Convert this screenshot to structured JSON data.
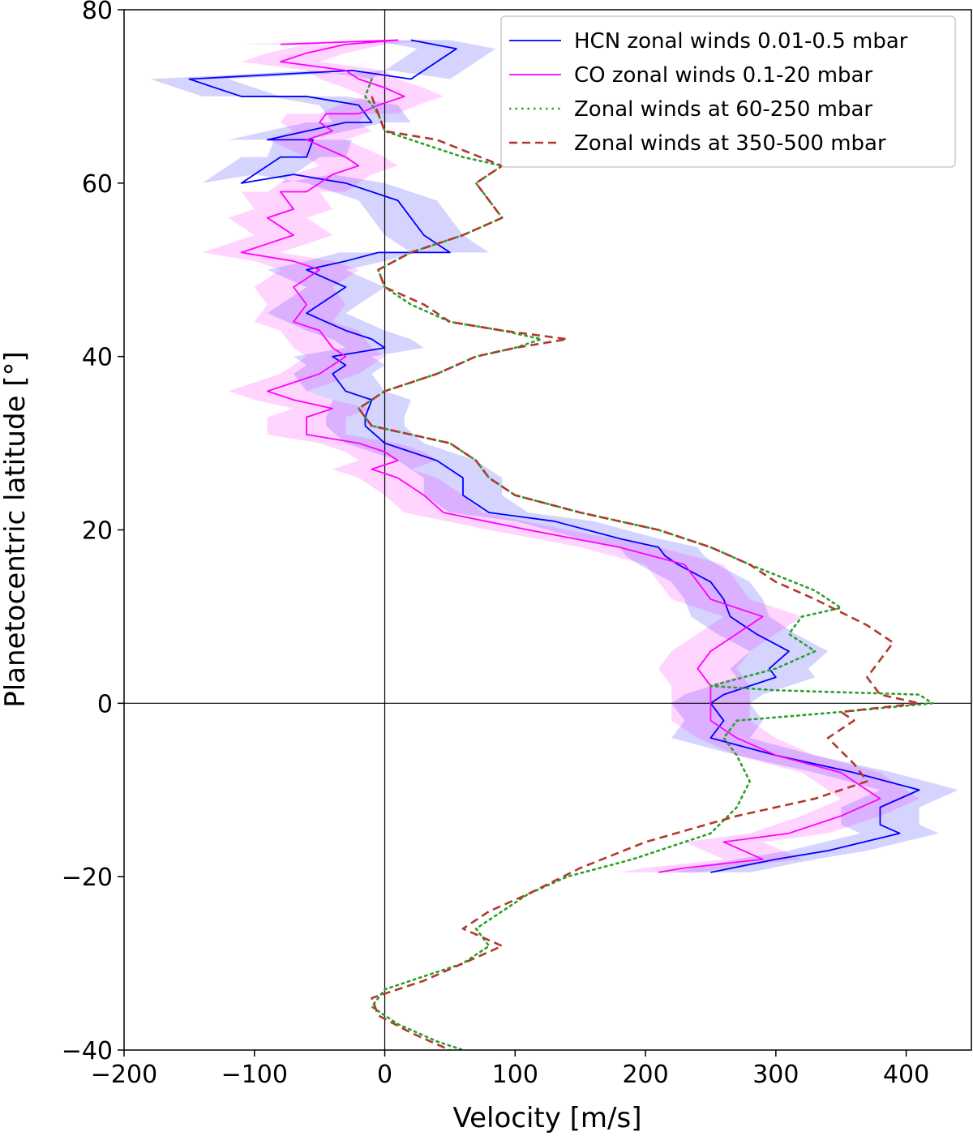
{
  "chart_data": {
    "type": "line",
    "title": "",
    "xlabel": "Velocity [m/s]",
    "ylabel": "Planetocentric latitude [°]",
    "xlim": [
      -200,
      450
    ],
    "ylim": [
      -40,
      80
    ],
    "xticks": [
      -200,
      -100,
      0,
      100,
      200,
      300,
      400
    ],
    "yticks": [
      -40,
      -20,
      0,
      20,
      40,
      60,
      80
    ],
    "xtick_labels": [
      "−200",
      "−100",
      "0",
      "100",
      "200",
      "300",
      "400"
    ],
    "ytick_labels": [
      "−40",
      "−20",
      "0",
      "20",
      "40",
      "60",
      "80"
    ],
    "grid": false,
    "reference_lines": {
      "x": 0,
      "y": 0
    },
    "legend_position": "top-right",
    "series": [
      {
        "name": "HCN zonal winds 0.01-0.5 mbar",
        "color": "#0000ff",
        "band_color": "#0000ff",
        "style": "solid",
        "uncertainty": 30,
        "points": [
          [
            20,
            76.5
          ],
          [
            55,
            75.5
          ],
          [
            30,
            73
          ],
          [
            20,
            72
          ],
          [
            -25,
            73
          ],
          [
            -150,
            72
          ],
          [
            -110,
            70
          ],
          [
            -60,
            70
          ],
          [
            -20,
            69
          ],
          [
            -10,
            67
          ],
          [
            -30,
            67
          ],
          [
            -90,
            65
          ],
          [
            -55,
            65
          ],
          [
            -60,
            63
          ],
          [
            -80,
            63
          ],
          [
            -110,
            60
          ],
          [
            -70,
            61
          ],
          [
            -30,
            60
          ],
          [
            -10,
            59
          ],
          [
            10,
            58
          ],
          [
            20,
            56
          ],
          [
            30,
            54
          ],
          [
            50,
            52
          ],
          [
            -5,
            52
          ],
          [
            -30,
            51
          ],
          [
            -60,
            50
          ],
          [
            -45,
            49
          ],
          [
            -30,
            48
          ],
          [
            -50,
            46
          ],
          [
            -60,
            45
          ],
          [
            -45,
            44
          ],
          [
            -30,
            43
          ],
          [
            -10,
            42
          ],
          [
            0,
            41
          ],
          [
            -40,
            40
          ],
          [
            -30,
            39
          ],
          [
            -40,
            38
          ],
          [
            -30,
            36
          ],
          [
            -10,
            35
          ],
          [
            -15,
            33
          ],
          [
            -15,
            32
          ],
          [
            0,
            30
          ],
          [
            20,
            29
          ],
          [
            40,
            28
          ],
          [
            60,
            26
          ],
          [
            60,
            24
          ],
          [
            80,
            22
          ],
          [
            130,
            21
          ],
          [
            180,
            19
          ],
          [
            210,
            18
          ],
          [
            215,
            17
          ],
          [
            225,
            16
          ],
          [
            250,
            14
          ],
          [
            260,
            12
          ],
          [
            265,
            10
          ],
          [
            285,
            8
          ],
          [
            310,
            6
          ],
          [
            295,
            4
          ],
          [
            300,
            3
          ],
          [
            260,
            1
          ],
          [
            250,
            0
          ],
          [
            260,
            -2
          ],
          [
            250,
            -4
          ],
          [
            300,
            -6
          ],
          [
            360,
            -8
          ],
          [
            410,
            -10
          ],
          [
            380,
            -12
          ],
          [
            380,
            -14
          ],
          [
            395,
            -15
          ],
          [
            340,
            -17
          ],
          [
            300,
            -18
          ],
          [
            250,
            -19.5
          ]
        ]
      },
      {
        "name": "CO zonal winds 0.1-20 mbar",
        "color": "#ff00ff",
        "band_color": "#ff00ff",
        "style": "solid",
        "uncertainty": 30,
        "points": [
          [
            -80,
            76
          ],
          [
            10,
            76.5
          ],
          [
            -30,
            76
          ],
          [
            -60,
            75
          ],
          [
            -80,
            74
          ],
          [
            -30,
            73
          ],
          [
            -20,
            72
          ],
          [
            0,
            71
          ],
          [
            15,
            70
          ],
          [
            -5,
            69
          ],
          [
            -20,
            68
          ],
          [
            -45,
            68
          ],
          [
            -50,
            67
          ],
          [
            -40,
            66
          ],
          [
            -60,
            65
          ],
          [
            -30,
            63
          ],
          [
            -20,
            62
          ],
          [
            -40,
            61
          ],
          [
            -60,
            59
          ],
          [
            -80,
            59
          ],
          [
            -70,
            57
          ],
          [
            -90,
            56
          ],
          [
            -70,
            54
          ],
          [
            -90,
            53
          ],
          [
            -110,
            52
          ],
          [
            -70,
            51
          ],
          [
            -50,
            50
          ],
          [
            -60,
            49
          ],
          [
            -70,
            48
          ],
          [
            -60,
            46
          ],
          [
            -70,
            44
          ],
          [
            -50,
            43
          ],
          [
            -40,
            41
          ],
          [
            -30,
            40
          ],
          [
            -50,
            38
          ],
          [
            -70,
            37
          ],
          [
            -90,
            36
          ],
          [
            -70,
            35
          ],
          [
            -40,
            34
          ],
          [
            -60,
            33
          ],
          [
            -60,
            31
          ],
          [
            -20,
            30
          ],
          [
            0,
            29
          ],
          [
            10,
            28
          ],
          [
            -10,
            27
          ],
          [
            10,
            26
          ],
          [
            30,
            24
          ],
          [
            45,
            22
          ],
          [
            110,
            20
          ],
          [
            180,
            18
          ],
          [
            230,
            16
          ],
          [
            240,
            14
          ],
          [
            250,
            12
          ],
          [
            290,
            10
          ],
          [
            270,
            8
          ],
          [
            250,
            6
          ],
          [
            240,
            4
          ],
          [
            250,
            2
          ],
          [
            250,
            0
          ],
          [
            250,
            -2
          ],
          [
            270,
            -4
          ],
          [
            300,
            -6
          ],
          [
            350,
            -8
          ],
          [
            380,
            -11
          ],
          [
            350,
            -13
          ],
          [
            310,
            -15
          ],
          [
            260,
            -16
          ],
          [
            290,
            -18
          ],
          [
            230,
            -19
          ],
          [
            210,
            -19.5
          ]
        ]
      },
      {
        "name": "Zonal winds at 60-250 mbar",
        "color": "#2ca02c",
        "style": "dotted",
        "points": [
          [
            -10,
            72
          ],
          [
            -15,
            70
          ],
          [
            -5,
            68
          ],
          [
            0,
            66
          ],
          [
            20,
            65
          ],
          [
            60,
            63
          ],
          [
            90,
            62
          ],
          [
            70,
            60
          ],
          [
            80,
            58
          ],
          [
            90,
            56
          ],
          [
            60,
            54
          ],
          [
            20,
            52
          ],
          [
            -5,
            50
          ],
          [
            0,
            48
          ],
          [
            20,
            46
          ],
          [
            50,
            44
          ],
          [
            90,
            43
          ],
          [
            120,
            42
          ],
          [
            100,
            41
          ],
          [
            70,
            40
          ],
          [
            40,
            38
          ],
          [
            0,
            36
          ],
          [
            -20,
            34
          ],
          [
            -10,
            32
          ],
          [
            20,
            31
          ],
          [
            50,
            30
          ],
          [
            70,
            28
          ],
          [
            80,
            26
          ],
          [
            100,
            24
          ],
          [
            150,
            22
          ],
          [
            210,
            20
          ],
          [
            250,
            18
          ],
          [
            280,
            16
          ],
          [
            330,
            13
          ],
          [
            350,
            11
          ],
          [
            320,
            10
          ],
          [
            310,
            8
          ],
          [
            330,
            6
          ],
          [
            300,
            4
          ],
          [
            250,
            2
          ],
          [
            300,
            1.5
          ],
          [
            410,
            1
          ],
          [
            420,
            0
          ],
          [
            350,
            -1
          ],
          [
            270,
            -2
          ],
          [
            260,
            -4
          ],
          [
            270,
            -6
          ],
          [
            280,
            -9
          ],
          [
            270,
            -12
          ],
          [
            250,
            -15
          ],
          [
            190,
            -18
          ],
          [
            140,
            -20
          ],
          [
            110,
            -22
          ],
          [
            90,
            -24
          ],
          [
            70,
            -26
          ],
          [
            80,
            -28
          ],
          [
            60,
            -30
          ],
          [
            40,
            -31
          ],
          [
            0,
            -33
          ],
          [
            -10,
            -35
          ],
          [
            10,
            -37
          ],
          [
            40,
            -39
          ],
          [
            60,
            -40
          ]
        ]
      },
      {
        "name": "Zonal winds at 350-500 mbar",
        "color": "#b03a2e",
        "style": "dashed",
        "points": [
          [
            -10,
            70
          ],
          [
            0,
            66
          ],
          [
            40,
            65
          ],
          [
            90,
            62
          ],
          [
            70,
            60
          ],
          [
            80,
            58
          ],
          [
            90,
            56
          ],
          [
            60,
            54
          ],
          [
            20,
            52
          ],
          [
            -5,
            50
          ],
          [
            0,
            48
          ],
          [
            30,
            46
          ],
          [
            50,
            44
          ],
          [
            90,
            43
          ],
          [
            140,
            42
          ],
          [
            100,
            41
          ],
          [
            70,
            40
          ],
          [
            40,
            38
          ],
          [
            0,
            36
          ],
          [
            -20,
            34
          ],
          [
            -10,
            32
          ],
          [
            20,
            31
          ],
          [
            50,
            30
          ],
          [
            70,
            28
          ],
          [
            80,
            26
          ],
          [
            100,
            24
          ],
          [
            150,
            22
          ],
          [
            210,
            20
          ],
          [
            250,
            18
          ],
          [
            280,
            16
          ],
          [
            300,
            14
          ],
          [
            330,
            12
          ],
          [
            370,
            9
          ],
          [
            390,
            7
          ],
          [
            380,
            5
          ],
          [
            370,
            3
          ],
          [
            380,
            1
          ],
          [
            410,
            0
          ],
          [
            350,
            -1
          ],
          [
            360,
            -2
          ],
          [
            340,
            -4
          ],
          [
            360,
            -7
          ],
          [
            370,
            -9
          ],
          [
            330,
            -11
          ],
          [
            270,
            -13
          ],
          [
            200,
            -16
          ],
          [
            150,
            -19
          ],
          [
            110,
            -22
          ],
          [
            80,
            -24
          ],
          [
            60,
            -26
          ],
          [
            90,
            -28
          ],
          [
            60,
            -30
          ],
          [
            30,
            -32
          ],
          [
            -10,
            -34
          ],
          [
            -5,
            -36
          ],
          [
            20,
            -38
          ],
          [
            50,
            -40
          ]
        ]
      }
    ]
  }
}
